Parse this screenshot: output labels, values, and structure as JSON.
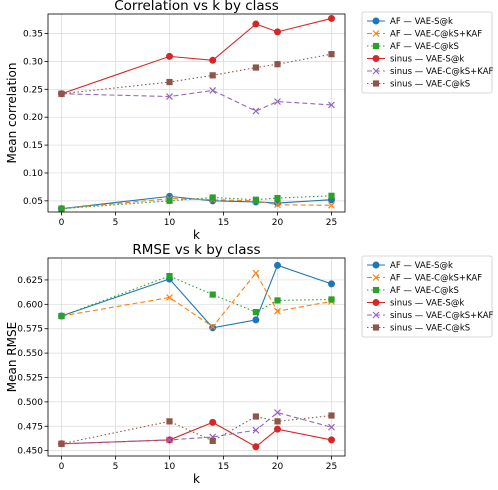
{
  "chart_data": [
    {
      "type": "line",
      "title": "Correlation vs k by class",
      "xlabel": "k",
      "ylabel": "Mean correlation",
      "xlim": [
        -1.25,
        26.25
      ],
      "ylim": [
        0.03,
        0.385
      ],
      "xticks": [
        0,
        5,
        10,
        15,
        20,
        25
      ],
      "yticks": [
        0.05,
        0.1,
        0.15,
        0.2,
        0.25,
        0.3,
        0.35
      ],
      "ytick_labels": [
        "0.05",
        "0.10",
        "0.15",
        "0.20",
        "0.25",
        "0.30",
        "0.35"
      ],
      "grid": true,
      "legend_placement": "outside right",
      "x": [
        0,
        10,
        14,
        18,
        20,
        25
      ],
      "series": [
        {
          "name": "AF — VAE-S@k",
          "color": "#1f77b4",
          "linestyle": "solid",
          "marker": "circle",
          "values": [
            0.036,
            0.058,
            0.05,
            0.048,
            0.046,
            0.052
          ]
        },
        {
          "name": "AF — VAE-C@kS+KAF",
          "color": "#ff7f0e",
          "linestyle": "dashed",
          "marker": "x",
          "values": [
            0.036,
            0.054,
            0.052,
            0.05,
            0.043,
            0.042
          ]
        },
        {
          "name": "AF — VAE-C@kS",
          "color": "#2ca02c",
          "linestyle": "dotted",
          "marker": "square",
          "values": [
            0.036,
            0.05,
            0.056,
            0.052,
            0.055,
            0.059
          ]
        },
        {
          "name": "sinus — VAE-S@k",
          "color": "#d62728",
          "linestyle": "solid",
          "marker": "circle",
          "values": [
            0.242,
            0.309,
            0.302,
            0.367,
            0.353,
            0.377
          ]
        },
        {
          "name": "sinus — VAE-C@kS+KAF",
          "color": "#9467bd",
          "linestyle": "dashed",
          "marker": "x",
          "values": [
            0.242,
            0.237,
            0.248,
            0.211,
            0.228,
            0.222
          ]
        },
        {
          "name": "sinus — VAE-C@kS",
          "color": "#8c564b",
          "linestyle": "dotted",
          "marker": "square",
          "values": [
            0.242,
            0.263,
            0.275,
            0.289,
            0.295,
            0.313
          ]
        }
      ]
    },
    {
      "type": "line",
      "title": "RMSE vs k by class",
      "xlabel": "k",
      "ylabel": "Mean RMSE",
      "xlim": [
        -1.25,
        26.25
      ],
      "ylim": [
        0.4445,
        0.6475
      ],
      "xticks": [
        0,
        5,
        10,
        15,
        20,
        25
      ],
      "yticks": [
        0.45,
        0.475,
        0.5,
        0.525,
        0.55,
        0.575,
        0.6,
        0.625
      ],
      "ytick_labels": [
        "0.450",
        "0.475",
        "0.500",
        "0.525",
        "0.550",
        "0.575",
        "0.600",
        "0.625"
      ],
      "grid": true,
      "legend_placement": "outside right",
      "x": [
        0,
        10,
        14,
        18,
        20,
        25
      ],
      "series": [
        {
          "name": "AF — VAE-S@k",
          "color": "#1f77b4",
          "linestyle": "solid",
          "marker": "circle",
          "values": [
            0.588,
            0.626,
            0.576,
            0.584,
            0.64,
            0.621
          ]
        },
        {
          "name": "AF — VAE-C@kS+KAF",
          "color": "#ff7f0e",
          "linestyle": "dashed",
          "marker": "x",
          "values": [
            0.588,
            0.607,
            0.577,
            0.632,
            0.593,
            0.603
          ]
        },
        {
          "name": "AF — VAE-C@kS",
          "color": "#2ca02c",
          "linestyle": "dotted",
          "marker": "square",
          "values": [
            0.588,
            0.629,
            0.61,
            0.592,
            0.604,
            0.605
          ]
        },
        {
          "name": "sinus — VAE-S@k",
          "color": "#d62728",
          "linestyle": "solid",
          "marker": "circle",
          "values": [
            0.457,
            0.461,
            0.479,
            0.454,
            0.472,
            0.461
          ]
        },
        {
          "name": "sinus — VAE-C@kS+KAF",
          "color": "#9467bd",
          "linestyle": "dashed",
          "marker": "x",
          "values": [
            0.457,
            0.461,
            0.464,
            0.471,
            0.489,
            0.474
          ]
        },
        {
          "name": "sinus — VAE-C@kS",
          "color": "#8c564b",
          "linestyle": "dotted",
          "marker": "square",
          "values": [
            0.457,
            0.48,
            0.46,
            0.485,
            0.48,
            0.486
          ]
        }
      ]
    }
  ]
}
